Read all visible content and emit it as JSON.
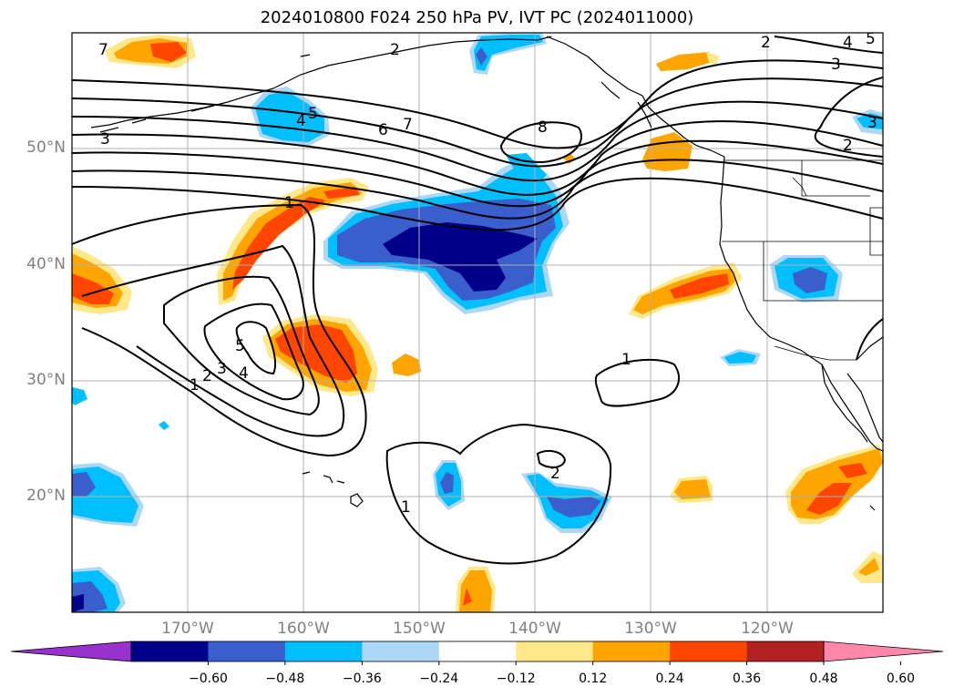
{
  "title": "2024010800 F024 250 hPa PV, IVT PC (2024011000)",
  "map": {
    "lon_range": [
      -180,
      -110
    ],
    "lat_range": [
      10,
      60
    ],
    "lat_ticks": [
      {
        "value": 50,
        "label": "50°N"
      },
      {
        "value": 40,
        "label": "40°N"
      },
      {
        "value": 30,
        "label": "30°N"
      },
      {
        "value": 20,
        "label": "20°N"
      }
    ],
    "lon_ticks": [
      {
        "value": -170,
        "label": "170°W"
      },
      {
        "value": -160,
        "label": "160°W"
      },
      {
        "value": -150,
        "label": "150°W"
      },
      {
        "value": -140,
        "label": "140°W"
      },
      {
        "value": -130,
        "label": "130°W"
      },
      {
        "value": -120,
        "label": "120°W"
      }
    ],
    "gridlines": true
  },
  "contour_labels": [
    "7",
    "3",
    "4",
    "5",
    "6",
    "7",
    "8",
    "1",
    "5",
    "1",
    "2",
    "3",
    "4",
    "1",
    "2",
    "1",
    "2",
    "3",
    "4",
    "5",
    "2",
    "3",
    "2"
  ],
  "colorbar": {
    "ticks": [
      "−0.60",
      "−0.48",
      "−0.36",
      "−0.24",
      "−0.12",
      "0.12",
      "0.24",
      "0.36",
      "0.48",
      "0.60"
    ],
    "colors": [
      "#9932cc",
      "#00008b",
      "#3a5fcd",
      "#00bfff",
      "#add8f5",
      "#ffffff",
      "#ffe88a",
      "#ffa500",
      "#ff4500",
      "#b22222",
      "#ff88aa"
    ],
    "extend": "both"
  }
}
